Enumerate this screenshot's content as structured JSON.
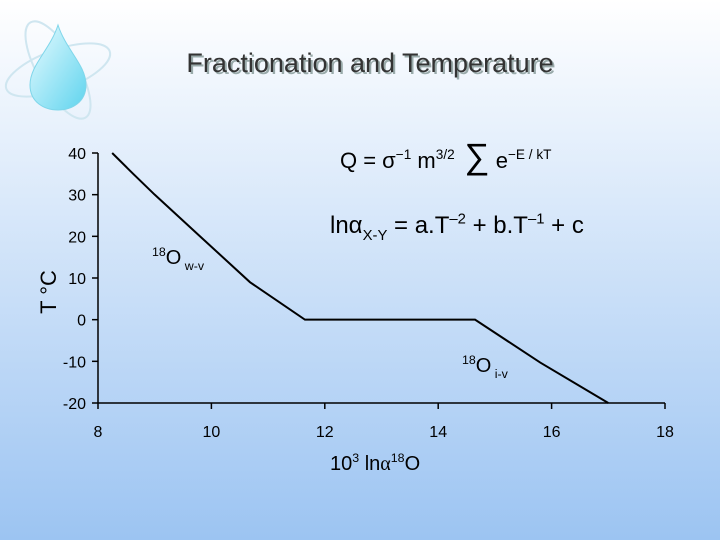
{
  "chart_data": {
    "type": "line",
    "title": "Fractionation and Temperature",
    "x": [
      8.25,
      8.62,
      9.0,
      9.8,
      10.68,
      11.65,
      14.65,
      15.8,
      17.0
    ],
    "series": [
      {
        "color": "#000000",
        "values": [
          40,
          35,
          30,
          20,
          9,
          0,
          0,
          -10.3,
          -20
        ]
      }
    ],
    "xlim": [
      8,
      18
    ],
    "xticks": [
      8,
      10,
      12,
      14,
      16,
      18
    ],
    "ylim": [
      -20,
      40
    ],
    "yticks": [
      -20,
      -10,
      0,
      10,
      20,
      30,
      40
    ],
    "ylabel": "T °C",
    "xlabel": [
      {
        "t": "10"
      },
      {
        "t": "3",
        "sup": true
      },
      {
        "t": " ln"
      },
      {
        "t": "α",
        "serif": true
      },
      {
        "t": "18",
        "sup": true
      },
      {
        "t": "O"
      }
    ],
    "annotations": [
      [
        {
          "t": "18",
          "sup": true
        },
        {
          "t": "O"
        },
        {
          "t": " w-v",
          "sub": true
        }
      ],
      [
        {
          "t": "18",
          "sup": true
        },
        {
          "t": "O"
        },
        {
          "t": " i-v",
          "sub": true
        }
      ]
    ],
    "equations": [
      [
        {
          "t": "Q = σ"
        },
        {
          "t": "−1",
          "sup": true
        },
        {
          "t": " m"
        },
        {
          "t": "3/2",
          "sup": true
        },
        {
          "t": " ∑",
          "big": true
        },
        {
          "t": " e"
        },
        {
          "t": "−E / kT",
          "sup": true
        }
      ],
      [
        {
          "t": "lnα"
        },
        {
          "t": "X-Y",
          "sub": true
        },
        {
          "t": " = a.T"
        },
        {
          "t": "–2",
          "sup": true
        },
        {
          "t": " + b.T"
        },
        {
          "t": "–1",
          "sup": true
        },
        {
          "t": " + c"
        }
      ]
    ]
  }
}
